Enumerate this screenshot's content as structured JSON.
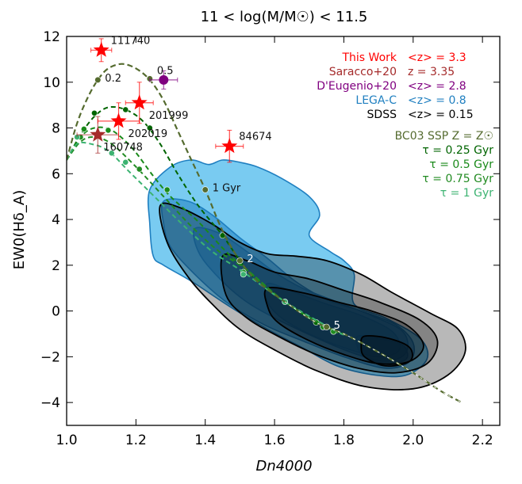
{
  "chart_data": {
    "type": "scatter",
    "title": "11 < log(M/M☉) < 11.5",
    "xlabel": "Dn4000",
    "ylabel": "EW0(Hδ_A)",
    "xlim": [
      1.0,
      2.25
    ],
    "ylim": [
      -5.0,
      12.0
    ],
    "xticks": [
      1.0,
      1.2,
      1.4,
      1.6,
      1.8,
      2.0,
      2.2
    ],
    "xtick_labels": [
      "1.0",
      "1.2",
      "1.4",
      "1.6",
      "1.8",
      "2.0",
      "2.2"
    ],
    "yticks": [
      -4,
      -2,
      0,
      2,
      4,
      6,
      8,
      10,
      12
    ],
    "ytick_labels": [
      "−4",
      "−2",
      "0",
      "2",
      "4",
      "6",
      "8",
      "10",
      "12"
    ],
    "colors": {
      "this_work": "#ff0000",
      "saracco": "#a52a2a",
      "deugenio": "#800080",
      "legac": "#1f7fc0",
      "legac_fill": "#5bc0ee",
      "sdss": "#000000",
      "bc03_ssp": "#556b2f",
      "tau025": "#006400",
      "tau05": "#1a8a1a",
      "tau075": "#228b22",
      "tau1": "#3cb371"
    },
    "legend": [
      {
        "label": "This Work",
        "zlabel": "<z> = 3.3",
        "color": "#ff0000"
      },
      {
        "label": "Saracco+20",
        "zlabel": "z = 3.35",
        "color": "#a52a2a"
      },
      {
        "label": "D'Eugenio+20",
        "zlabel": "<z> = 2.8",
        "color": "#800080"
      },
      {
        "label": "LEGA-C",
        "zlabel": "<z> = 0.8",
        "color": "#1f7fc0"
      },
      {
        "label": "SDSS",
        "zlabel": "<z> = 0.15",
        "color": "#000000"
      }
    ],
    "model_legend": [
      {
        "label": "BC03 SSP Z = Z☉",
        "color": "#556b2f"
      },
      {
        "label": "τ = 0.25 Gyr",
        "color": "#006400"
      },
      {
        "label": "τ = 0.5 Gyr",
        "color": "#1a8a1a"
      },
      {
        "label": "τ = 0.75 Gyr",
        "color": "#228b22"
      },
      {
        "label": "τ = 1 Gyr",
        "color": "#3cb371"
      }
    ],
    "this_work_points": [
      {
        "id": "111740",
        "x": 1.1,
        "y": 11.4,
        "xerr": 0.03,
        "yerr": 0.5
      },
      {
        "id": "201999",
        "x": 1.21,
        "y": 9.1,
        "xerr": 0.04,
        "yerr": 0.9
      },
      {
        "id": "202019",
        "x": 1.15,
        "y": 8.3,
        "xerr": 0.06,
        "yerr": 0.8
      },
      {
        "id": "84674",
        "x": 1.47,
        "y": 7.2,
        "xerr": 0.04,
        "yerr": 0.7
      }
    ],
    "saracco_points": [
      {
        "id": "160748",
        "x": 1.09,
        "y": 7.7,
        "xerr": 0.06,
        "yerr": 0.8
      }
    ],
    "deugenio_points": [
      {
        "x": 1.28,
        "y": 10.1,
        "xerr": 0.04,
        "yerr": 0.4
      }
    ],
    "ssp_track": {
      "x": [
        1.0,
        1.03,
        1.06,
        1.09,
        1.12,
        1.16,
        1.2,
        1.24,
        1.28,
        1.32,
        1.36,
        1.4,
        1.45,
        1.5,
        1.55,
        1.63,
        1.72,
        1.8,
        1.9,
        2.0,
        2.08,
        2.14
      ],
      "y": [
        6.6,
        8.2,
        9.3,
        10.1,
        10.6,
        10.8,
        10.6,
        10.1,
        9.2,
        7.9,
        6.6,
        5.3,
        3.5,
        2.2,
        1.3,
        0.4,
        -0.5,
        -1.0,
        -1.8,
        -2.7,
        -3.5,
        -4.0
      ],
      "ages": [
        {
          "label": "0.2",
          "x": 1.09,
          "y": 10.1
        },
        {
          "label": "0.5",
          "x": 1.24,
          "y": 10.15
        },
        {
          "label": "1 Gyr",
          "x": 1.4,
          "y": 5.3
        },
        {
          "label": "2",
          "x": 1.5,
          "y": 2.2
        },
        {
          "label": "5",
          "x": 1.75,
          "y": -0.7
        }
      ]
    },
    "tau_tracks": [
      {
        "name": "τ = 0.25 Gyr",
        "x": [
          1.0,
          1.04,
          1.08,
          1.12,
          1.17,
          1.22,
          1.27,
          1.32,
          1.38,
          1.45,
          1.5,
          1.55,
          1.63,
          1.72,
          1.8
        ],
        "y": [
          6.6,
          7.7,
          8.5,
          8.9,
          8.8,
          8.3,
          7.3,
          6.0,
          4.6,
          3.3,
          2.2,
          1.3,
          0.4,
          -0.5,
          -1.0
        ],
        "markers": [
          [
            1.08,
            8.65
          ],
          [
            1.17,
            8.8
          ],
          [
            1.24,
            8.0
          ],
          [
            1.45,
            3.3
          ],
          [
            1.72,
            -0.5
          ]
        ]
      },
      {
        "name": "τ = 0.5 Gyr",
        "x": [
          1.0,
          1.04,
          1.08,
          1.13,
          1.19,
          1.25,
          1.3,
          1.38,
          1.46,
          1.52,
          1.63,
          1.74,
          1.8
        ],
        "y": [
          6.6,
          7.6,
          8.0,
          7.9,
          7.1,
          5.9,
          5.0,
          3.9,
          2.6,
          1.8,
          0.4,
          -0.6,
          -1.0
        ],
        "markers": [
          [
            1.05,
            7.95
          ],
          [
            1.12,
            7.9
          ],
          [
            1.29,
            5.3
          ],
          [
            1.74,
            -0.7
          ]
        ]
      },
      {
        "name": "τ = 0.75 Gyr",
        "x": [
          1.0,
          1.04,
          1.08,
          1.13,
          1.2,
          1.28,
          1.36,
          1.44,
          1.52,
          1.63,
          1.76,
          1.8
        ],
        "y": [
          6.6,
          7.4,
          7.6,
          7.3,
          6.3,
          5.0,
          3.7,
          2.6,
          1.8,
          0.4,
          -0.8,
          -1.0
        ],
        "markers": [
          [
            1.04,
            7.6
          ],
          [
            1.21,
            6.2
          ],
          [
            1.51,
            1.7
          ],
          [
            1.77,
            -0.9
          ]
        ]
      },
      {
        "name": "τ = 1 Gyr",
        "x": [
          1.0,
          1.03,
          1.07,
          1.12,
          1.18,
          1.26,
          1.34,
          1.42,
          1.51,
          1.63,
          1.78,
          1.8
        ],
        "y": [
          6.6,
          7.3,
          7.3,
          7.0,
          6.1,
          4.9,
          3.7,
          2.6,
          1.7,
          0.4,
          -0.9,
          -1.0
        ],
        "markers": [
          [
            1.03,
            7.6
          ],
          [
            1.13,
            6.9
          ],
          [
            1.17,
            6.5
          ],
          [
            1.51,
            1.6
          ],
          [
            1.63,
            0.4
          ]
        ]
      }
    ],
    "legac_contours": [
      [
        [
          1.24,
          5.3
        ],
        [
          1.3,
          6.3
        ],
        [
          1.36,
          6.6
        ],
        [
          1.41,
          6.4
        ],
        [
          1.45,
          6.6
        ],
        [
          1.5,
          6.5
        ],
        [
          1.55,
          6.3
        ],
        [
          1.62,
          5.8
        ],
        [
          1.7,
          5.0
        ],
        [
          1.73,
          4.2
        ],
        [
          1.7,
          3.3
        ],
        [
          1.76,
          2.6
        ],
        [
          1.8,
          2.2
        ],
        [
          1.83,
          1.6
        ],
        [
          1.83,
          0.3
        ],
        [
          1.92,
          -0.3
        ],
        [
          2.02,
          -1.2
        ],
        [
          2.04,
          -2.1
        ],
        [
          1.98,
          -2.8
        ],
        [
          1.89,
          -2.8
        ],
        [
          1.78,
          -2.4
        ],
        [
          1.68,
          -1.6
        ],
        [
          1.58,
          -0.8
        ],
        [
          1.47,
          0.2
        ],
        [
          1.36,
          1.3
        ],
        [
          1.28,
          2.0
        ],
        [
          1.25,
          2.4
        ],
        [
          1.24,
          3.8
        ]
      ],
      [
        [
          1.28,
          4.8
        ],
        [
          1.35,
          4.8
        ],
        [
          1.42,
          4.2
        ],
        [
          1.5,
          3.2
        ],
        [
          1.58,
          2.3
        ],
        [
          1.66,
          1.3
        ],
        [
          1.75,
          0.5
        ],
        [
          1.85,
          0.0
        ],
        [
          1.95,
          -0.6
        ],
        [
          2.0,
          -1.4
        ],
        [
          1.99,
          -2.2
        ],
        [
          1.92,
          -2.5
        ],
        [
          1.8,
          -2.0
        ],
        [
          1.68,
          -1.3
        ],
        [
          1.57,
          -0.6
        ],
        [
          1.46,
          0.4
        ],
        [
          1.37,
          1.6
        ],
        [
          1.3,
          2.8
        ],
        [
          1.28,
          3.8
        ]
      ],
      [
        [
          1.37,
          3.6
        ],
        [
          1.44,
          3.4
        ],
        [
          1.52,
          2.6
        ],
        [
          1.6,
          1.7
        ],
        [
          1.68,
          1.0
        ],
        [
          1.78,
          0.4
        ],
        [
          1.88,
          -0.2
        ],
        [
          1.97,
          -0.9
        ],
        [
          1.98,
          -1.8
        ],
        [
          1.92,
          -2.2
        ],
        [
          1.82,
          -1.8
        ],
        [
          1.71,
          -1.1
        ],
        [
          1.6,
          -0.3
        ],
        [
          1.51,
          0.5
        ],
        [
          1.43,
          1.6
        ],
        [
          1.38,
          2.6
        ]
      ],
      [
        [
          1.58,
          1.2
        ],
        [
          1.66,
          0.8
        ],
        [
          1.75,
          0.3
        ],
        [
          1.85,
          -0.2
        ],
        [
          1.94,
          -0.9
        ],
        [
          1.96,
          -1.7
        ],
        [
          1.9,
          -2.0
        ],
        [
          1.8,
          -1.6
        ],
        [
          1.7,
          -1.0
        ],
        [
          1.62,
          -0.3
        ],
        [
          1.58,
          0.4
        ]
      ],
      [
        [
          1.84,
          -1.1
        ],
        [
          1.9,
          -1.2
        ],
        [
          1.97,
          -1.5
        ],
        [
          1.98,
          -2.1
        ],
        [
          1.92,
          -2.3
        ],
        [
          1.86,
          -2.0
        ],
        [
          1.84,
          -1.6
        ]
      ]
    ],
    "sdss_contours": [
      [
        [
          1.27,
          4.6
        ],
        [
          1.33,
          4.5
        ],
        [
          1.42,
          3.8
        ],
        [
          1.5,
          3.0
        ],
        [
          1.58,
          2.5
        ],
        [
          1.66,
          2.4
        ],
        [
          1.75,
          2.2
        ],
        [
          1.85,
          1.6
        ],
        [
          1.94,
          0.8
        ],
        [
          2.05,
          -0.1
        ],
        [
          2.13,
          -0.8
        ],
        [
          2.15,
          -1.8
        ],
        [
          2.1,
          -2.8
        ],
        [
          2.0,
          -3.4
        ],
        [
          1.86,
          -3.3
        ],
        [
          1.72,
          -2.6
        ],
        [
          1.6,
          -1.7
        ],
        [
          1.5,
          -0.8
        ],
        [
          1.42,
          0.3
        ],
        [
          1.35,
          1.5
        ],
        [
          1.29,
          3.0
        ]
      ],
      [
        [
          1.45,
          2.4
        ],
        [
          1.52,
          2.2
        ],
        [
          1.6,
          1.7
        ],
        [
          1.7,
          1.4
        ],
        [
          1.8,
          0.9
        ],
        [
          1.9,
          0.4
        ],
        [
          2.02,
          -0.4
        ],
        [
          2.07,
          -1.3
        ],
        [
          2.04,
          -2.3
        ],
        [
          1.95,
          -2.7
        ],
        [
          1.84,
          -2.5
        ],
        [
          1.72,
          -1.9
        ],
        [
          1.61,
          -1.1
        ],
        [
          1.52,
          -0.3
        ],
        [
          1.46,
          0.7
        ]
      ],
      [
        [
          1.58,
          1.0
        ],
        [
          1.68,
          0.8
        ],
        [
          1.78,
          0.4
        ],
        [
          1.88,
          0.0
        ],
        [
          1.98,
          -0.6
        ],
        [
          2.03,
          -1.5
        ],
        [
          1.99,
          -2.2
        ],
        [
          1.9,
          -2.3
        ],
        [
          1.8,
          -1.9
        ],
        [
          1.7,
          -1.3
        ],
        [
          1.61,
          -0.5
        ],
        [
          1.58,
          0.2
        ]
      ],
      [
        [
          1.86,
          -1.1
        ],
        [
          1.93,
          -1.2
        ],
        [
          1.99,
          -1.6
        ],
        [
          1.99,
          -2.2
        ],
        [
          1.92,
          -2.4
        ],
        [
          1.86,
          -2.0
        ],
        [
          1.85,
          -1.5
        ]
      ]
    ]
  }
}
